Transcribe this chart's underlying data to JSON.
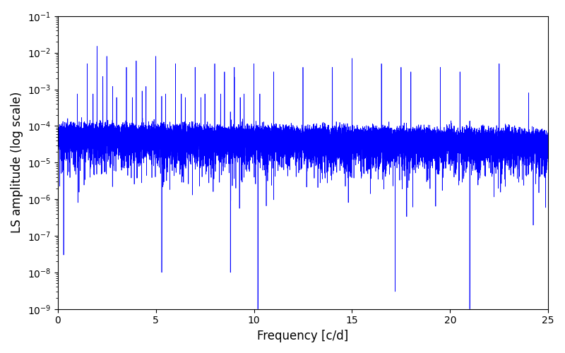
{
  "xlabel": "Frequency [c/d]",
  "ylabel": "LS amplitude (log scale)",
  "xlim": [
    0,
    25
  ],
  "ylim": [
    1e-09,
    0.1
  ],
  "line_color": "#0000ff",
  "line_width": 0.5,
  "yscale": "log",
  "figsize": [
    8.0,
    5.0
  ],
  "dpi": 100,
  "freq_min": 0.0,
  "freq_max": 25.0,
  "n_points": 15000,
  "random_seed": 7,
  "background_color": "#ffffff",
  "tick_label_fontsize": 10,
  "axis_label_fontsize": 12
}
